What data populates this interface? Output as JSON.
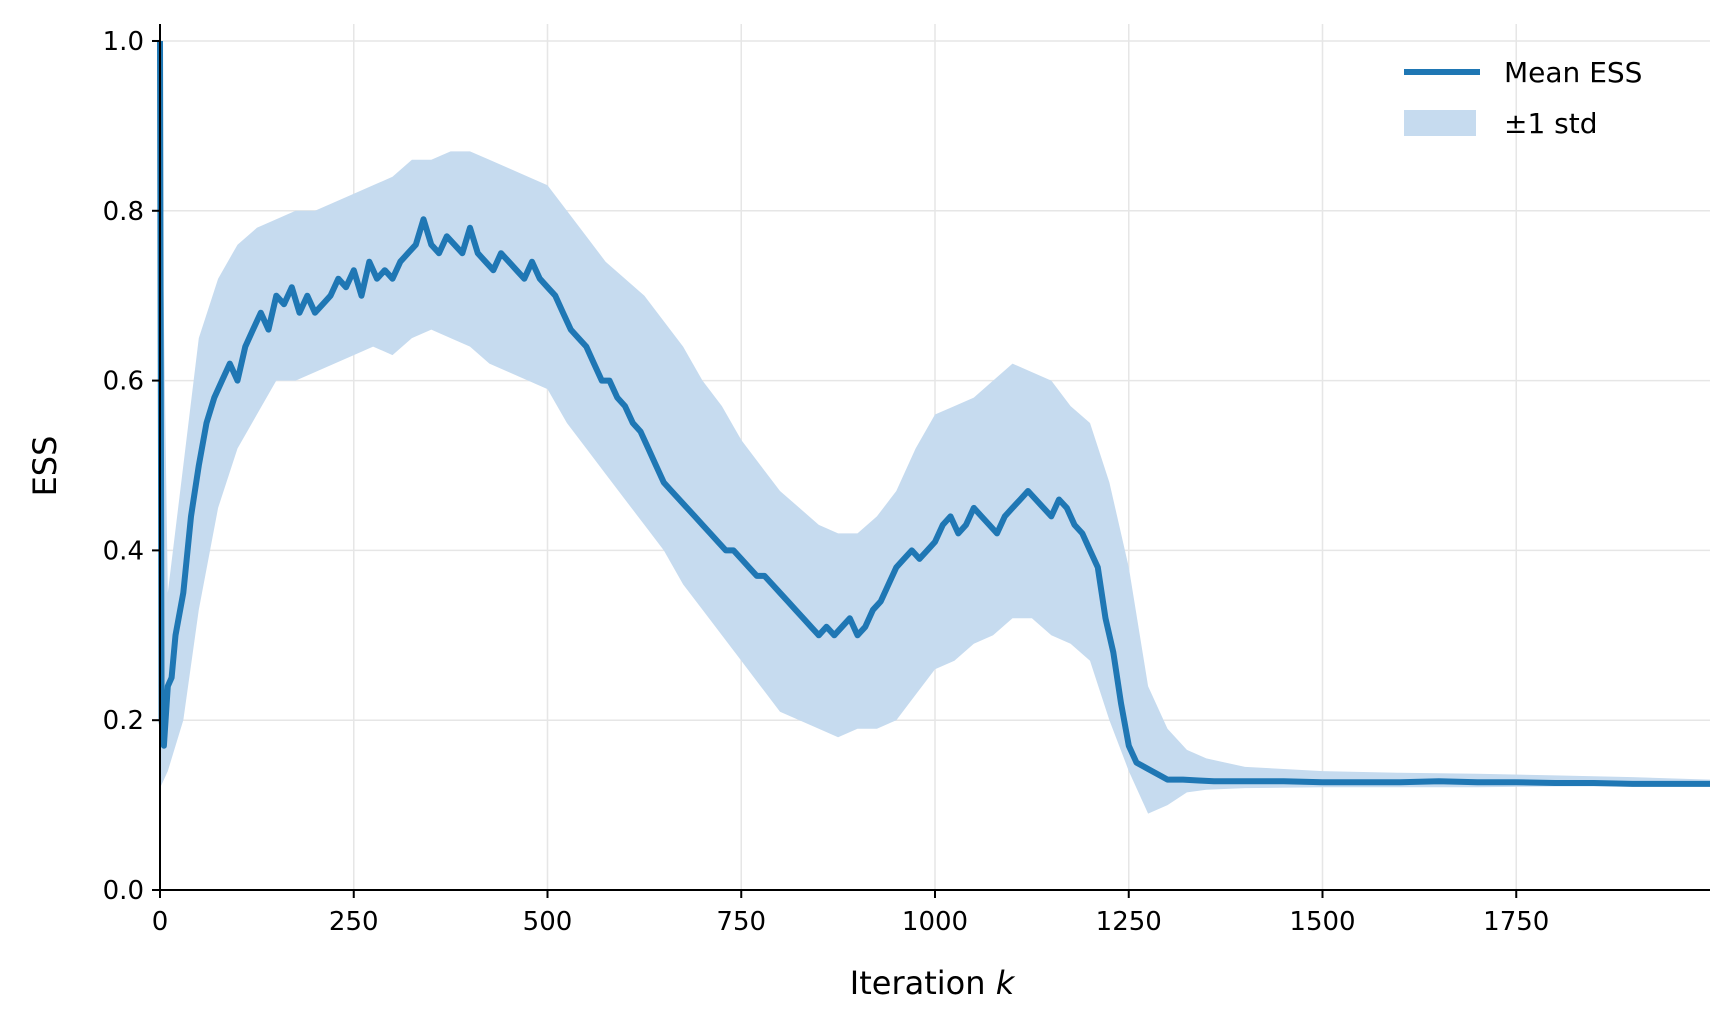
{
  "chart_data": {
    "type": "line",
    "xlabel_text": "Iteration ",
    "xlabel_var": "k",
    "ylabel": "ESS",
    "xlim": [
      0,
      2000
    ],
    "ylim": [
      0,
      1.02
    ],
    "x_ticks": [
      0,
      250,
      500,
      750,
      1000,
      1250,
      1500,
      1750
    ],
    "x_tick_labels": [
      "0",
      "250",
      "500",
      "750",
      "1000",
      "1250",
      "1500",
      "1750"
    ],
    "y_ticks": [
      0.0,
      0.2,
      0.4,
      0.6,
      0.8,
      1.0
    ],
    "y_tick_labels": [
      "0.0",
      "0.2",
      "0.4",
      "0.6",
      "0.8",
      "1.0"
    ],
    "grid": true,
    "legend": "top-right",
    "colors": {
      "line": "#1f77b4",
      "band": "#c6dbef",
      "grid": "#e6e6e6",
      "axis": "#000000"
    },
    "series": [
      {
        "name": "Mean ESS",
        "x": [
          0,
          2,
          5,
          10,
          15,
          20,
          30,
          40,
          50,
          60,
          70,
          80,
          90,
          100,
          110,
          120,
          130,
          140,
          150,
          160,
          170,
          180,
          190,
          200,
          210,
          220,
          230,
          240,
          250,
          260,
          270,
          280,
          290,
          300,
          310,
          320,
          330,
          340,
          350,
          360,
          370,
          380,
          390,
          400,
          410,
          420,
          430,
          440,
          450,
          460,
          470,
          480,
          490,
          500,
          510,
          520,
          530,
          540,
          550,
          560,
          570,
          580,
          590,
          600,
          610,
          620,
          630,
          640,
          650,
          660,
          670,
          680,
          690,
          700,
          710,
          720,
          730,
          740,
          750,
          760,
          770,
          780,
          790,
          800,
          810,
          820,
          830,
          840,
          850,
          860,
          870,
          880,
          890,
          900,
          910,
          920,
          930,
          940,
          950,
          960,
          970,
          980,
          990,
          1000,
          1010,
          1020,
          1030,
          1040,
          1050,
          1060,
          1070,
          1080,
          1090,
          1100,
          1110,
          1120,
          1130,
          1140,
          1150,
          1160,
          1170,
          1180,
          1190,
          1200,
          1210,
          1220,
          1230,
          1240,
          1250,
          1260,
          1270,
          1280,
          1290,
          1300,
          1320,
          1340,
          1360,
          1380,
          1400,
          1450,
          1500,
          1550,
          1600,
          1650,
          1700,
          1750,
          1800,
          1850,
          1900,
          1950,
          2000
        ],
        "y": [
          1.0,
          0.2,
          0.17,
          0.24,
          0.25,
          0.3,
          0.35,
          0.44,
          0.5,
          0.55,
          0.58,
          0.6,
          0.62,
          0.6,
          0.64,
          0.66,
          0.68,
          0.66,
          0.7,
          0.69,
          0.71,
          0.68,
          0.7,
          0.68,
          0.69,
          0.7,
          0.72,
          0.71,
          0.73,
          0.7,
          0.74,
          0.72,
          0.73,
          0.72,
          0.74,
          0.75,
          0.76,
          0.79,
          0.76,
          0.75,
          0.77,
          0.76,
          0.75,
          0.78,
          0.75,
          0.74,
          0.73,
          0.75,
          0.74,
          0.73,
          0.72,
          0.74,
          0.72,
          0.71,
          0.7,
          0.68,
          0.66,
          0.65,
          0.64,
          0.62,
          0.6,
          0.6,
          0.58,
          0.57,
          0.55,
          0.54,
          0.52,
          0.5,
          0.48,
          0.47,
          0.46,
          0.45,
          0.44,
          0.43,
          0.42,
          0.41,
          0.4,
          0.4,
          0.39,
          0.38,
          0.37,
          0.37,
          0.36,
          0.35,
          0.34,
          0.33,
          0.32,
          0.31,
          0.3,
          0.31,
          0.3,
          0.31,
          0.32,
          0.3,
          0.31,
          0.33,
          0.34,
          0.36,
          0.38,
          0.39,
          0.4,
          0.39,
          0.4,
          0.41,
          0.43,
          0.44,
          0.42,
          0.43,
          0.45,
          0.44,
          0.43,
          0.42,
          0.44,
          0.45,
          0.46,
          0.47,
          0.46,
          0.45,
          0.44,
          0.46,
          0.45,
          0.43,
          0.42,
          0.4,
          0.38,
          0.32,
          0.28,
          0.22,
          0.17,
          0.15,
          0.145,
          0.14,
          0.135,
          0.13,
          0.13,
          0.129,
          0.128,
          0.128,
          0.128,
          0.128,
          0.127,
          0.127,
          0.127,
          0.128,
          0.127,
          0.127,
          0.126,
          0.126,
          0.125,
          0.125,
          0.125
        ]
      },
      {
        "name": "±1 std",
        "x": [
          0,
          10,
          30,
          50,
          75,
          100,
          125,
          150,
          175,
          200,
          225,
          250,
          275,
          300,
          325,
          350,
          375,
          400,
          425,
          450,
          475,
          500,
          525,
          550,
          575,
          600,
          625,
          650,
          675,
          700,
          725,
          750,
          775,
          800,
          825,
          850,
          875,
          900,
          925,
          950,
          975,
          1000,
          1025,
          1050,
          1075,
          1100,
          1125,
          1150,
          1175,
          1200,
          1225,
          1250,
          1275,
          1300,
          1325,
          1350,
          1400,
          1500,
          1600,
          1700,
          1800,
          1900,
          2000
        ],
        "lower": [
          0.12,
          0.14,
          0.2,
          0.33,
          0.45,
          0.52,
          0.56,
          0.6,
          0.6,
          0.61,
          0.62,
          0.63,
          0.64,
          0.63,
          0.65,
          0.66,
          0.65,
          0.64,
          0.62,
          0.61,
          0.6,
          0.59,
          0.55,
          0.52,
          0.49,
          0.46,
          0.43,
          0.4,
          0.36,
          0.33,
          0.3,
          0.27,
          0.24,
          0.21,
          0.2,
          0.19,
          0.18,
          0.19,
          0.19,
          0.2,
          0.23,
          0.26,
          0.27,
          0.29,
          0.3,
          0.32,
          0.32,
          0.3,
          0.29,
          0.27,
          0.2,
          0.14,
          0.09,
          0.1,
          0.115,
          0.118,
          0.12,
          0.121,
          0.121,
          0.121,
          0.122,
          0.122,
          0.122
        ],
        "upper": [
          1.0,
          0.35,
          0.5,
          0.65,
          0.72,
          0.76,
          0.78,
          0.79,
          0.8,
          0.8,
          0.81,
          0.82,
          0.83,
          0.84,
          0.86,
          0.86,
          0.87,
          0.87,
          0.86,
          0.85,
          0.84,
          0.83,
          0.8,
          0.77,
          0.74,
          0.72,
          0.7,
          0.67,
          0.64,
          0.6,
          0.57,
          0.53,
          0.5,
          0.47,
          0.45,
          0.43,
          0.42,
          0.42,
          0.44,
          0.47,
          0.52,
          0.56,
          0.57,
          0.58,
          0.6,
          0.62,
          0.61,
          0.6,
          0.57,
          0.55,
          0.48,
          0.38,
          0.24,
          0.19,
          0.165,
          0.155,
          0.145,
          0.14,
          0.138,
          0.137,
          0.135,
          0.133,
          0.13
        ]
      }
    ]
  }
}
